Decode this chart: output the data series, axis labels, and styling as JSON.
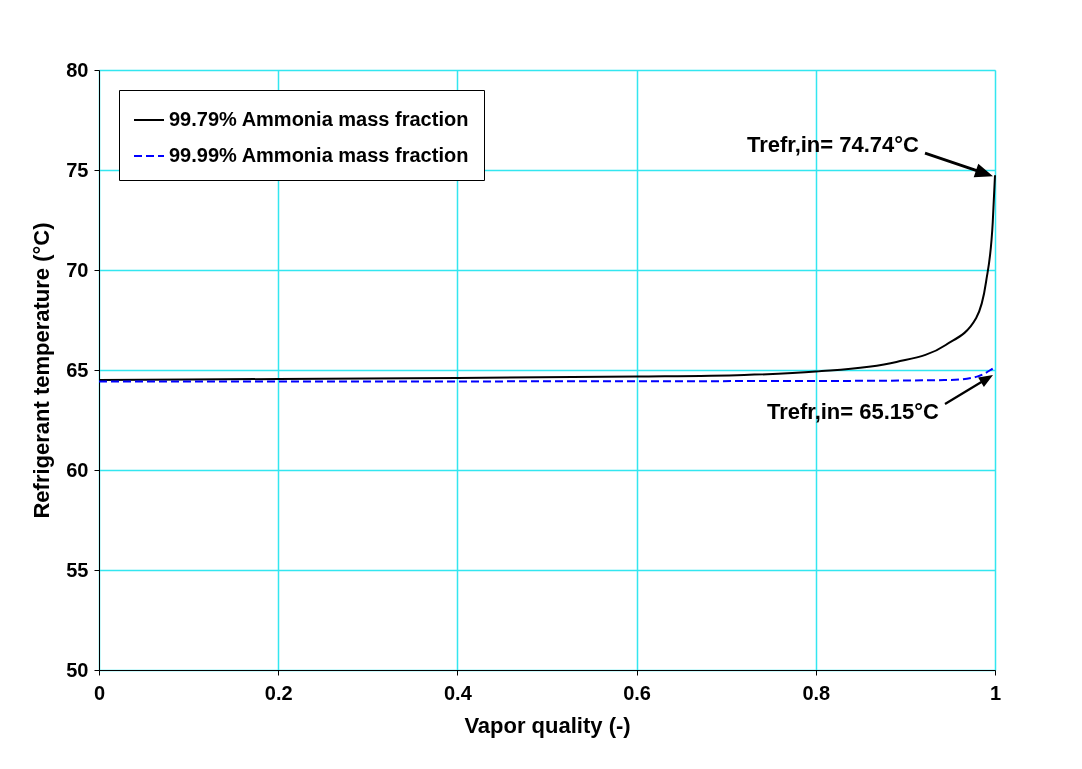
{
  "chart_data": {
    "type": "line",
    "xlabel": "Vapor quality (-)",
    "ylabel": "Refrigerant temperature (°C)",
    "xlim": [
      0,
      1
    ],
    "xticks": [
      {
        "value": 0,
        "label": "0"
      },
      0.2,
      0.4,
      0.6,
      0.8,
      {
        "value": 1,
        "label": "1"
      }
    ],
    "ylim": [
      50,
      80
    ],
    "yticks": [
      50,
      55,
      60,
      65,
      70,
      75,
      80
    ],
    "grid": true,
    "legend": "top left",
    "series": [
      {
        "name": "99.79% Ammonia mass fraction",
        "color": "#000000",
        "line_style": "solid",
        "x": [
          0,
          0.2,
          0.4,
          0.6,
          0.72,
          0.8,
          0.89,
          0.945,
          0.979,
          0.99,
          0.9975,
          1
        ],
        "values": [
          64.5,
          64.55,
          64.6,
          64.67,
          64.75,
          64.92,
          65.4,
          66.25,
          67.6,
          69.4,
          72.4,
          74.74
        ]
      },
      {
        "name": "99.99% Ammonia mass fraction",
        "color": "#0000ff",
        "line_style": "dashed",
        "x": [
          0,
          0.2,
          0.4,
          0.6,
          0.8,
          0.95,
          0.98,
          0.995,
          1
        ],
        "values": [
          64.42,
          64.43,
          64.43,
          64.44,
          64.45,
          64.5,
          64.67,
          65.0,
          65.15
        ]
      }
    ],
    "annotations": [
      "Trefr,in= 74.74°C",
      "Trefr,in= 65.15°C"
    ]
  }
}
